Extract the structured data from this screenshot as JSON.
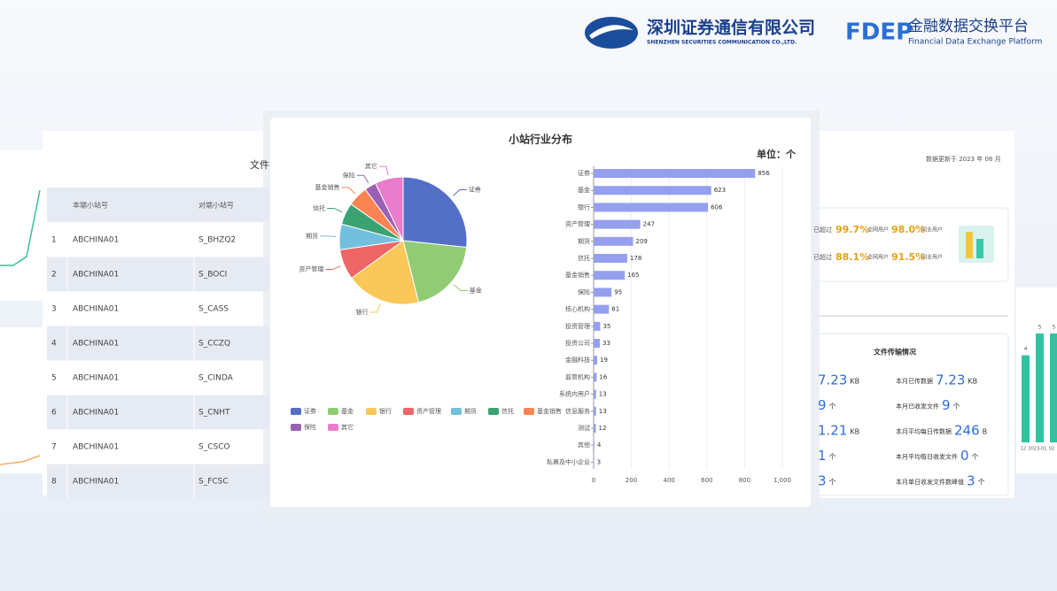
{
  "header": {
    "company": "深圳证券通信有限公司",
    "company_en": "SHENZHEN SECURITIES COMMUNICATION CO.,LTD.",
    "logo": "FDEP",
    "platform": "金融数据交换平台",
    "platform_en": "Financial Data Exchange Platform"
  },
  "table": {
    "title": "文件",
    "headers": [
      "本端小站号",
      "对端小站号"
    ],
    "rows": [
      [
        "1",
        "ABCHINA01",
        "S_BHZQ2"
      ],
      [
        "2",
        "ABCHINA01",
        "S_BOCI"
      ],
      [
        "3",
        "ABCHINA01",
        "S_CASS"
      ],
      [
        "4",
        "ABCHINA01",
        "S_CCZQ"
      ],
      [
        "5",
        "ABCHINA01",
        "S_CINDA"
      ],
      [
        "6",
        "ABCHINA01",
        "S_CNHT"
      ],
      [
        "7",
        "ABCHINA01",
        "S_CSCO"
      ],
      [
        "8",
        "ABCHINA01",
        "S_FCSC"
      ]
    ]
  },
  "chart_data": [
    {
      "type": "pie",
      "title": "小站行业分布",
      "categories": [
        "证券",
        "基金",
        "银行",
        "资产管理",
        "期货",
        "信托",
        "基金销售",
        "保险",
        "其它"
      ],
      "values": [
        856,
        623,
        606,
        247,
        209,
        178,
        165,
        95,
        229
      ],
      "colors": [
        "#5470c6",
        "#91cc75",
        "#fac858",
        "#ee6666",
        "#73c0de",
        "#3ba272",
        "#fc8452",
        "#9a60b4",
        "#ea7ccc"
      ]
    },
    {
      "type": "hbar",
      "unit": "单位：个",
      "color": "#959ff0",
      "categories": [
        "证券",
        "基金",
        "银行",
        "资产管理",
        "期货",
        "信托",
        "基金销售",
        "保险",
        "核心机构",
        "投资管理",
        "投资公司",
        "金融科技",
        "监管机构",
        "系统内用户",
        "信息服务",
        "测试",
        "其他",
        "私募及中小企业"
      ],
      "values": [
        856,
        623,
        606,
        247,
        209,
        178,
        165,
        95,
        81,
        35,
        33,
        19,
        16,
        13,
        13,
        12,
        4,
        3
      ],
      "xlim": [
        0,
        1000
      ],
      "xticks": [
        0,
        200,
        400,
        600,
        800,
        {
          "value": 1000,
          "label": "1,000"
        }
      ],
      "grid": true
    },
    {
      "type": "bar",
      "color": "#2ec4a0",
      "categories": [
        "12",
        "2023-01",
        "02"
      ],
      "values": [
        4,
        5,
        5
      ],
      "ylim": [
        0,
        6.5
      ]
    }
  ],
  "side": {
    "updated": "数据更新于 2023 年 06 月",
    "stats": [
      {
        "prefix": "已超过",
        "a": "99.7%",
        "a_label": "全网用户",
        "b": "98.0%",
        "b_label": "同业用户"
      },
      {
        "prefix": "已超过",
        "a": "88.1%",
        "a_label": "全网用户",
        "b": "91.5%",
        "b_label": "同业用户"
      }
    ],
    "transfer_title": "文件传输情况",
    "left": [
      {
        "value": "7.23",
        "unit": "KB"
      },
      {
        "value": "9",
        "unit": "个"
      },
      {
        "value": "1.21",
        "unit": "KB"
      },
      {
        "value": "1",
        "unit": "个"
      },
      {
        "value": "3",
        "unit": "个"
      }
    ],
    "right": [
      {
        "label": "本月已传数据",
        "value": "7.23",
        "unit": "KB"
      },
      {
        "label": "本月已收发文件",
        "value": "9",
        "unit": "个"
      },
      {
        "label": "本月平均每日传数据",
        "value": "246",
        "unit": "B"
      },
      {
        "label": "本月平均每日收发文件",
        "value": "0",
        "unit": "个"
      },
      {
        "label": "本月单日收发文件数峰值",
        "value": "3",
        "unit": "个"
      }
    ]
  }
}
